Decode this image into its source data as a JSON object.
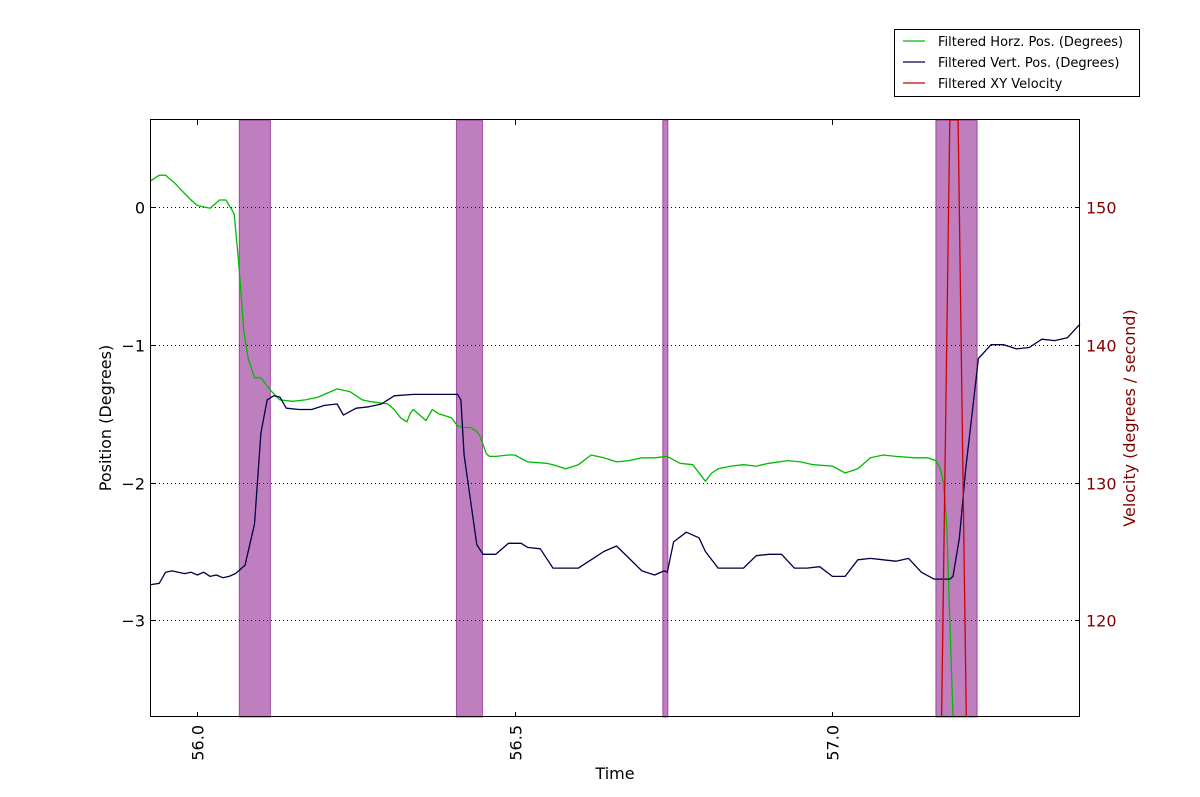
{
  "chart_data": {
    "type": "line",
    "xlabel": "Time",
    "ylabel": "Position (Degrees)",
    "y2label": "Velocity (degrees / second)",
    "xlim": [
      55.927,
      57.39
    ],
    "ylim": [
      -3.7,
      0.63
    ],
    "y2lim": [
      113.0,
      156.3
    ],
    "x_ticks": [
      56.0,
      56.5,
      57.0
    ],
    "x_tick_labels": [
      "56.0",
      "56.5",
      "57.0"
    ],
    "y_ticks": [
      0,
      -1,
      -2,
      -3
    ],
    "y_tick_labels": [
      "0",
      "−1",
      "−2",
      "−3"
    ],
    "y2_ticks": [
      150,
      140,
      130,
      120
    ],
    "y2_tick_labels": [
      "150",
      "140",
      "130",
      "120"
    ],
    "grid": "horizontal dotted",
    "legend_position": "top-right",
    "highlight_regions": [
      {
        "start": 56.066,
        "end": 56.115
      },
      {
        "start": 56.408,
        "end": 56.449
      },
      {
        "start": 56.733,
        "end": 56.741
      },
      {
        "start": 57.163,
        "end": 57.228
      }
    ],
    "series": [
      {
        "name": "Filtered Horz. Pos. (Degrees)",
        "color": "#00bb00",
        "axis": "left",
        "x": [
          55.927,
          55.94,
          55.95,
          55.965,
          55.975,
          55.99,
          56.0,
          56.01,
          56.02,
          56.035,
          56.045,
          56.058,
          56.065,
          56.07,
          56.073,
          56.08,
          56.09,
          56.1,
          56.115,
          56.13,
          56.15,
          56.17,
          56.19,
          56.22,
          56.24,
          56.26,
          56.27,
          56.3,
          56.31,
          56.32,
          56.33,
          56.335,
          56.34,
          56.36,
          56.37,
          56.38,
          56.4,
          56.41,
          56.42,
          56.43,
          56.44,
          56.445,
          56.455,
          56.46,
          56.47,
          56.49,
          56.5,
          56.52,
          56.55,
          56.56,
          56.58,
          56.6,
          56.62,
          56.64,
          56.66,
          56.68,
          56.7,
          56.72,
          56.74,
          56.76,
          56.78,
          56.8,
          56.81,
          56.82,
          56.84,
          56.86,
          56.88,
          56.9,
          56.93,
          56.95,
          56.97,
          57.0,
          57.02,
          57.04,
          57.06,
          57.08,
          57.1,
          57.13,
          57.15,
          57.163,
          57.17,
          57.175,
          57.18,
          57.19
        ],
        "y": [
          0.19,
          0.23,
          0.23,
          0.17,
          0.12,
          0.05,
          0.01,
          0.0,
          -0.01,
          0.05,
          0.05,
          -0.05,
          -0.4,
          -0.7,
          -0.9,
          -1.1,
          -1.24,
          -1.24,
          -1.33,
          -1.4,
          -1.41,
          -1.4,
          -1.38,
          -1.32,
          -1.34,
          -1.4,
          -1.41,
          -1.43,
          -1.47,
          -1.53,
          -1.56,
          -1.5,
          -1.47,
          -1.55,
          -1.47,
          -1.5,
          -1.53,
          -1.59,
          -1.6,
          -1.6,
          -1.63,
          -1.66,
          -1.79,
          -1.81,
          -1.81,
          -1.8,
          -1.8,
          -1.85,
          -1.86,
          -1.87,
          -1.9,
          -1.87,
          -1.8,
          -1.82,
          -1.85,
          -1.84,
          -1.82,
          -1.82,
          -1.81,
          -1.86,
          -1.87,
          -1.99,
          -1.93,
          -1.9,
          -1.88,
          -1.87,
          -1.88,
          -1.86,
          -1.84,
          -1.85,
          -1.87,
          -1.88,
          -1.93,
          -1.9,
          -1.82,
          -1.8,
          -1.81,
          -1.82,
          -1.82,
          -1.84,
          -1.9,
          -2.0,
          -2.3,
          -3.7
        ]
      },
      {
        "name": "Filtered Vert. Pos. (Degrees)",
        "color": "#000044",
        "axis": "left",
        "x": [
          55.927,
          55.94,
          55.95,
          55.96,
          55.97,
          55.98,
          55.99,
          56.0,
          56.01,
          56.02,
          56.03,
          56.04,
          56.05,
          56.06,
          56.075,
          56.09,
          56.1,
          56.11,
          56.12,
          56.13,
          56.14,
          56.16,
          56.18,
          56.2,
          56.22,
          56.23,
          56.25,
          56.27,
          56.29,
          56.31,
          56.34,
          56.36,
          56.39,
          56.41,
          56.415,
          56.42,
          56.44,
          56.45,
          56.47,
          56.49,
          56.51,
          56.52,
          56.54,
          56.56,
          56.58,
          56.6,
          56.62,
          56.64,
          56.66,
          56.68,
          56.7,
          56.72,
          56.735,
          56.74,
          56.75,
          56.77,
          56.79,
          56.8,
          56.82,
          56.84,
          56.86,
          56.88,
          56.9,
          56.92,
          56.94,
          56.96,
          56.98,
          57.0,
          57.02,
          57.04,
          57.06,
          57.08,
          57.1,
          57.12,
          57.14,
          57.16,
          57.175,
          57.185,
          57.19,
          57.2,
          57.21,
          57.22,
          57.23,
          57.25,
          57.27,
          57.29,
          57.31,
          57.33,
          57.35,
          57.37,
          57.39
        ],
        "y": [
          -2.74,
          -2.73,
          -2.65,
          -2.64,
          -2.65,
          -2.66,
          -2.65,
          -2.67,
          -2.65,
          -2.68,
          -2.67,
          -2.69,
          -2.68,
          -2.66,
          -2.6,
          -2.3,
          -1.64,
          -1.4,
          -1.37,
          -1.38,
          -1.46,
          -1.47,
          -1.47,
          -1.44,
          -1.43,
          -1.51,
          -1.46,
          -1.45,
          -1.43,
          -1.37,
          -1.36,
          -1.36,
          -1.36,
          -1.36,
          -1.4,
          -1.8,
          -2.45,
          -2.52,
          -2.52,
          -2.44,
          -2.44,
          -2.47,
          -2.48,
          -2.62,
          -2.62,
          -2.62,
          -2.56,
          -2.5,
          -2.46,
          -2.55,
          -2.64,
          -2.67,
          -2.64,
          -2.65,
          -2.43,
          -2.36,
          -2.4,
          -2.5,
          -2.62,
          -2.62,
          -2.62,
          -2.53,
          -2.52,
          -2.52,
          -2.62,
          -2.62,
          -2.61,
          -2.68,
          -2.68,
          -2.56,
          -2.55,
          -2.56,
          -2.57,
          -2.55,
          -2.65,
          -2.7,
          -2.7,
          -2.7,
          -2.68,
          -2.4,
          -1.9,
          -1.5,
          -1.1,
          -1.0,
          -1.0,
          -1.03,
          -1.02,
          -0.96,
          -0.97,
          -0.95,
          -0.85
        ]
      },
      {
        "name": "Filtered XY Velocity",
        "color": "#cc0000",
        "axis": "right",
        "x": [
          57.172,
          57.185,
          57.198,
          57.211
        ],
        "y": [
          113.0,
          156.3,
          156.3,
          113.0
        ]
      }
    ]
  }
}
